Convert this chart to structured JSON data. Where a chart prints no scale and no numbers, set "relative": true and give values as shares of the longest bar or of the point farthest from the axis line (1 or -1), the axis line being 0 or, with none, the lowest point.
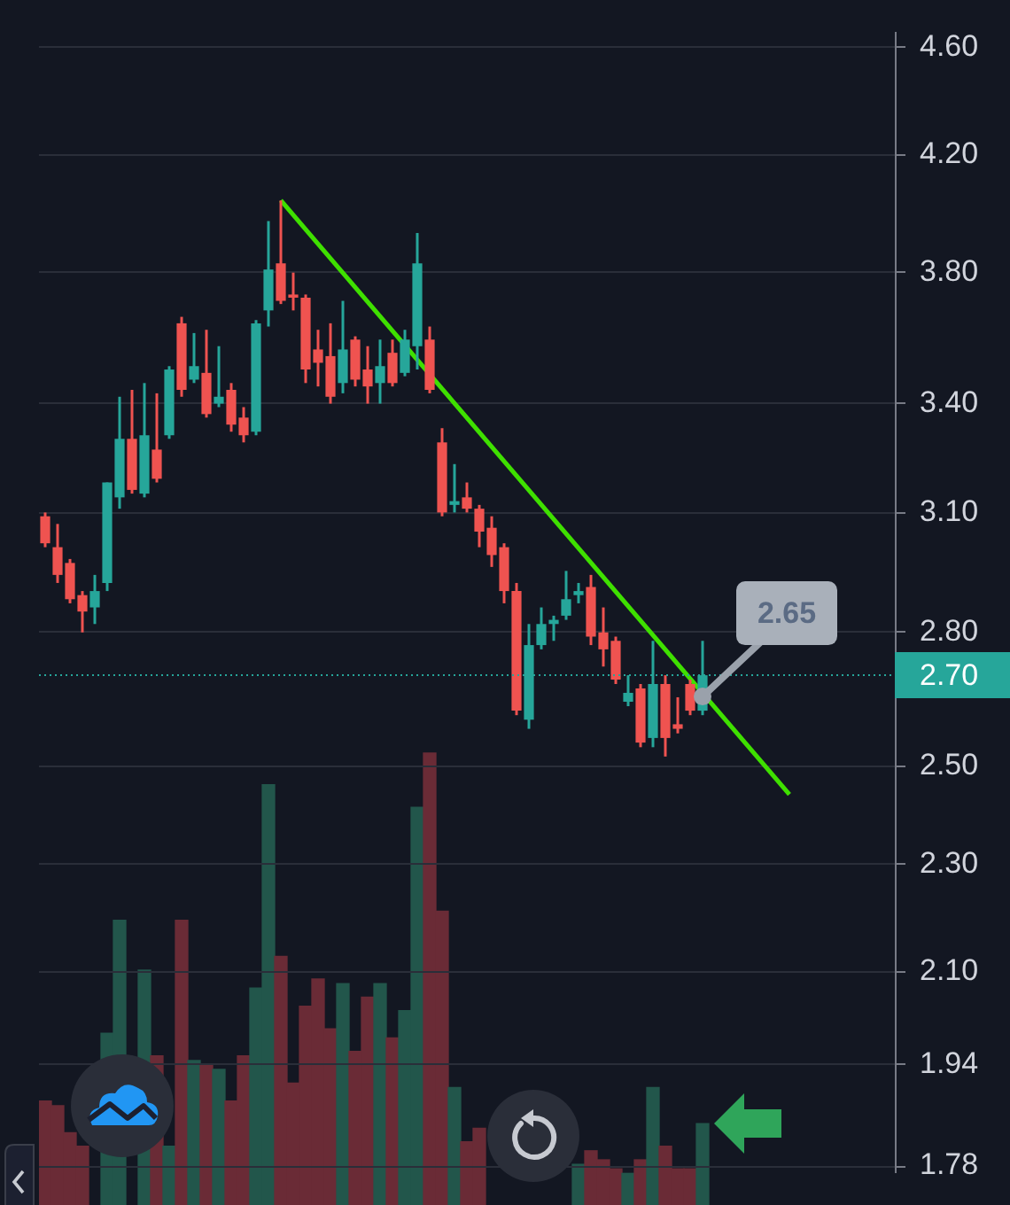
{
  "chart_data": [
    {
      "type": "candlestick",
      "categories": [
        null,
        null,
        null,
        null,
        null,
        null,
        null,
        null,
        null,
        null,
        null,
        null,
        null,
        null,
        null,
        null,
        null,
        null,
        null,
        null,
        null,
        null,
        null,
        null,
        null,
        null,
        null,
        null,
        null,
        null,
        null,
        null,
        null,
        null,
        null,
        null,
        null,
        null,
        null,
        null,
        null,
        null,
        null,
        null,
        null,
        null,
        null,
        null,
        null,
        null,
        null,
        null,
        null,
        null,
        null,
        null,
        null,
        null,
        null,
        null,
        null,
        null,
        null,
        null,
        null,
        null,
        null,
        null,
        null
      ],
      "ohlc": [
        [
          3.09,
          3.1,
          3.01,
          3.02
        ],
        [
          3.01,
          3.07,
          2.92,
          2.94
        ],
        [
          2.97,
          2.98,
          2.87,
          2.88
        ],
        [
          2.89,
          2.9,
          2.8,
          2.85
        ],
        [
          2.86,
          2.94,
          2.82,
          2.9
        ],
        [
          2.92,
          3.18,
          2.9,
          3.18
        ],
        [
          3.14,
          3.42,
          3.11,
          3.3
        ],
        [
          3.3,
          3.44,
          3.15,
          3.16
        ],
        [
          3.15,
          3.46,
          3.14,
          3.31
        ],
        [
          3.27,
          3.43,
          3.18,
          3.19
        ],
        [
          3.31,
          3.51,
          3.3,
          3.5
        ],
        [
          3.64,
          3.66,
          3.42,
          3.44
        ],
        [
          3.47,
          3.61,
          3.46,
          3.51
        ],
        [
          3.49,
          3.62,
          3.36,
          3.37
        ],
        [
          3.4,
          3.57,
          3.39,
          3.42
        ],
        [
          3.44,
          3.46,
          3.32,
          3.34
        ],
        [
          3.36,
          3.39,
          3.29,
          3.31
        ],
        [
          3.32,
          3.65,
          3.31,
          3.64
        ],
        [
          3.68,
          3.97,
          3.63,
          3.81
        ],
        [
          3.83,
          4.04,
          3.7,
          3.71
        ],
        [
          3.73,
          3.8,
          3.68,
          3.72
        ],
        [
          3.72,
          3.73,
          3.46,
          3.5
        ],
        [
          3.56,
          3.62,
          3.45,
          3.52
        ],
        [
          3.54,
          3.64,
          3.4,
          3.42
        ],
        [
          3.46,
          3.71,
          3.43,
          3.56
        ],
        [
          3.59,
          3.6,
          3.45,
          3.47
        ],
        [
          3.5,
          3.57,
          3.4,
          3.45
        ],
        [
          3.46,
          3.59,
          3.4,
          3.51
        ],
        [
          3.55,
          3.59,
          3.45,
          3.46
        ],
        [
          3.49,
          3.62,
          3.48,
          3.59
        ],
        [
          3.57,
          3.93,
          3.5,
          3.83
        ],
        [
          3.59,
          3.63,
          3.43,
          3.44
        ],
        [
          3.29,
          3.33,
          3.09,
          3.1
        ],
        [
          3.12,
          3.23,
          3.1,
          3.13
        ],
        [
          3.14,
          3.18,
          3.1,
          3.11
        ],
        [
          3.11,
          3.12,
          3.01,
          3.05
        ],
        [
          3.06,
          3.09,
          2.96,
          2.99
        ],
        [
          3.01,
          3.02,
          2.87,
          2.9
        ],
        [
          2.9,
          2.92,
          2.61,
          2.62
        ],
        [
          2.6,
          2.82,
          2.58,
          2.77
        ],
        [
          2.77,
          2.86,
          2.76,
          2.82
        ],
        [
          2.82,
          2.84,
          2.78,
          2.83
        ],
        [
          2.84,
          2.95,
          2.83,
          2.88
        ],
        [
          2.89,
          2.92,
          2.87,
          2.9
        ],
        [
          2.91,
          2.94,
          2.77,
          2.79
        ],
        [
          2.8,
          2.86,
          2.72,
          2.76
        ],
        [
          2.78,
          2.79,
          2.68,
          2.69
        ],
        [
          2.64,
          2.7,
          2.63,
          2.66
        ],
        [
          2.67,
          2.68,
          2.54,
          2.55
        ],
        [
          2.56,
          2.78,
          2.54,
          2.68
        ],
        [
          2.68,
          2.7,
          2.52,
          2.56
        ],
        [
          2.59,
          2.65,
          2.57,
          2.58
        ],
        [
          2.68,
          2.69,
          2.61,
          2.62
        ],
        [
          2.62,
          2.78,
          2.61,
          2.7
        ],
        null,
        null,
        null,
        null,
        null,
        null,
        null,
        null,
        null,
        null,
        null,
        null,
        null,
        null,
        null
      ],
      "colors": [
        "#ef5350",
        "#ef5350",
        "#ef5350",
        "#ef5350",
        "#26a69a",
        "#26a69a",
        "#26a69a",
        "#ef5350",
        "#26a69a",
        "#ef5350",
        "#26a69a",
        "#ef5350",
        "#26a69a",
        "#ef5350",
        "#26a69a",
        "#ef5350",
        "#ef5350",
        "#26a69a",
        "#26a69a",
        "#ef5350",
        "#ef5350",
        "#ef5350",
        "#ef5350",
        "#ef5350",
        "#26a69a",
        "#ef5350",
        "#ef5350",
        "#26a69a",
        "#ef5350",
        "#26a69a",
        "#26a69a",
        "#ef5350",
        "#ef5350",
        "#26a69a",
        "#ef5350",
        "#ef5350",
        "#ef5350",
        "#ef5350",
        "#ef5350",
        "#26a69a",
        "#26a69a",
        "#26a69a",
        "#26a69a",
        "#26a69a",
        "#ef5350",
        "#ef5350",
        "#ef5350",
        "#26a69a",
        "#ef5350",
        "#26a69a",
        "#ef5350",
        "#ef5350",
        "#ef5350",
        "#26a69a",
        null,
        null,
        null,
        null,
        null,
        null,
        null,
        null,
        null,
        null,
        null,
        null,
        null,
        null,
        null
      ],
      "series": [
        {
          "type": "line",
          "color": "#3fe000",
          "values": [
            null,
            null,
            null,
            null,
            null,
            null,
            null,
            null,
            null,
            null,
            null,
            null,
            null,
            null,
            null,
            null,
            null,
            null,
            null,
            4.04,
            null,
            null,
            null,
            null,
            null,
            null,
            null,
            null,
            null,
            null,
            null,
            null,
            null,
            null,
            null,
            null,
            null,
            null,
            null,
            null,
            null,
            null,
            null,
            null,
            null,
            null,
            null,
            null,
            null,
            null,
            null,
            null,
            null,
            null,
            null,
            null,
            null,
            null,
            null,
            null,
            2.44,
            null,
            null,
            null,
            null,
            null,
            null,
            null,
            null
          ]
        }
      ],
      "ylim": [
        1.77,
        4.66
      ],
      "yticks": [
        {
          "value": 4.6,
          "label": "4.60"
        },
        {
          "value": 4.2,
          "label": "4.20"
        },
        {
          "value": 3.8,
          "label": "3.80"
        },
        {
          "value": 3.4,
          "label": "3.40"
        },
        {
          "value": 3.1,
          "label": "3.10"
        },
        {
          "value": 2.8,
          "label": "2.80"
        },
        {
          "value": 2.5,
          "label": "2.50"
        },
        {
          "value": 2.3,
          "label": "2.30"
        },
        {
          "value": 2.1,
          "label": "2.10"
        },
        1.94,
        1.78
      ],
      "log": "y",
      "grid": "y",
      "tick_labels": "y",
      "ref_lines": [
        {
          "axis": "y",
          "value": 2.7,
          "label": "2.70",
          "color": "#26a69a",
          "line_style": "dotted"
        }
      ],
      "annotations": [
        "2.65"
      ]
    },
    {
      "type": "bar",
      "relative": true,
      "tick_labels": false,
      "categories": [
        null,
        null,
        null,
        null,
        null,
        null,
        null,
        null,
        null,
        null,
        null,
        null,
        null,
        null,
        null,
        null,
        null,
        null,
        null,
        null,
        null,
        null,
        null,
        null,
        null,
        null,
        null,
        null,
        null,
        null,
        null,
        null,
        null,
        null,
        null,
        null,
        null,
        null,
        null,
        null,
        null,
        null,
        null,
        null,
        null,
        null,
        null,
        null,
        null,
        null,
        null,
        null,
        null,
        null,
        null,
        null,
        null,
        null,
        null,
        null,
        null,
        null,
        null,
        null,
        null,
        null,
        null,
        null,
        null
      ],
      "colors": [
        "#6a2b36",
        "#6a2b36",
        "#6a2b36",
        "#6a2b36",
        "#22564b",
        "#22564b",
        "#22564b",
        "#6a2b36",
        "#22564b",
        "#6a2b36",
        "#22564b",
        "#6a2b36",
        "#22564b",
        "#6a2b36",
        "#22564b",
        "#6a2b36",
        "#6a2b36",
        "#22564b",
        "#22564b",
        "#6a2b36",
        "#6a2b36",
        "#6a2b36",
        "#6a2b36",
        "#6a2b36",
        "#22564b",
        "#6a2b36",
        "#6a2b36",
        "#22564b",
        "#6a2b36",
        "#22564b",
        "#22564b",
        "#6a2b36",
        "#6a2b36",
        "#22564b",
        "#6a2b36",
        "#6a2b36",
        "#6a2b36",
        "#6a2b36",
        "#6a2b36",
        "#22564b",
        "#22564b",
        "#22564b",
        "#22564b",
        "#22564b",
        "#6a2b36",
        "#6a2b36",
        "#6a2b36",
        "#22564b",
        "#6a2b36",
        "#22564b",
        "#6a2b36",
        "#6a2b36",
        "#6a2b36",
        "#22564b",
        null,
        null,
        null,
        null,
        null,
        null,
        null,
        null,
        null,
        null,
        null,
        null,
        null,
        null,
        null
      ],
      "values": [
        0.23,
        0.22,
        0.16,
        0.13,
        null,
        0.38,
        0.63,
        null,
        0.52,
        0.33,
        0.13,
        0.63,
        0.32,
        0.31,
        0.3,
        0.23,
        0.33,
        0.48,
        0.93,
        0.55,
        0.27,
        0.44,
        0.5,
        0.39,
        0.49,
        0.34,
        0.46,
        0.49,
        0.37,
        0.43,
        0.88,
        1,
        0.65,
        0.26,
        0.14,
        0.17,
        null,
        null,
        null,
        null,
        null,
        null,
        null,
        0.09,
        0.12,
        0.1,
        0.08,
        0.07,
        0.1,
        0.26,
        0.13,
        0.08,
        0.08,
        0.18,
        null,
        null,
        null,
        null,
        null,
        null,
        null,
        null,
        null,
        null,
        null,
        null,
        null,
        null,
        null
      ]
    }
  ]
}
